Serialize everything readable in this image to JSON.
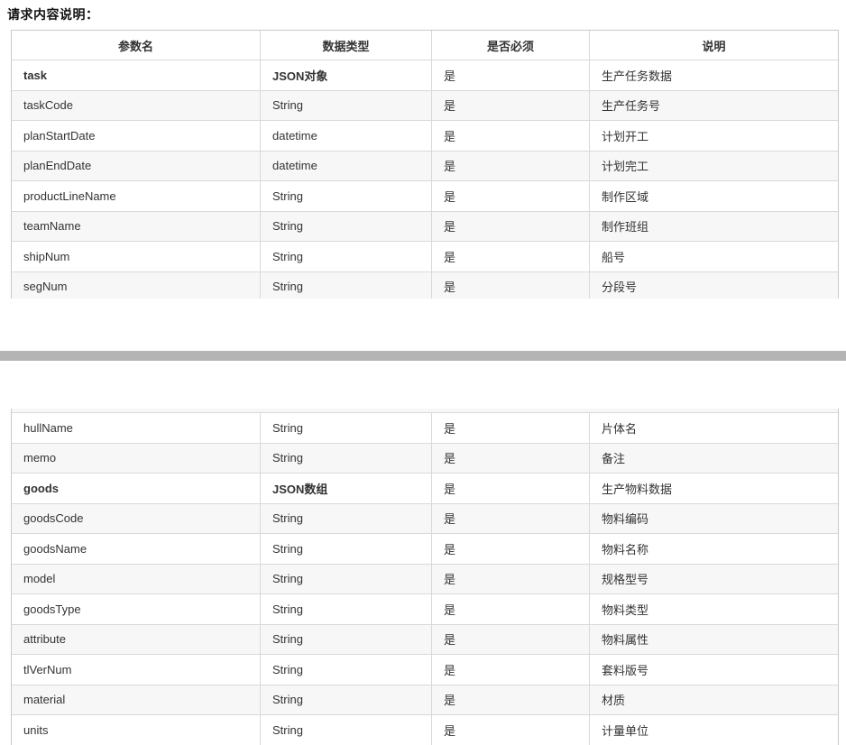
{
  "page": {
    "heading": "请求内容说明："
  },
  "colors": {
    "page_divider": "#b4b4b4",
    "row_stripe": "#f7f7f7",
    "table_border": "#c9c9c9",
    "cell_border": "#d9d9d9",
    "text": "#333333"
  },
  "table": {
    "headers": [
      "参数名",
      "数据类型",
      "是否必须",
      "说明"
    ]
  },
  "tables": {
    "page1_rows": [
      {
        "name": "task",
        "type": "JSON对象",
        "required": "是",
        "desc": "生产任务数据",
        "bold": true
      },
      {
        "name": "taskCode",
        "type": "String",
        "required": "是",
        "desc": "生产任务号"
      },
      {
        "name": "planStartDate",
        "type": "datetime",
        "required": "是",
        "desc": "计划开工"
      },
      {
        "name": "planEndDate",
        "type": "datetime",
        "required": "是",
        "desc": "计划完工"
      },
      {
        "name": "productLineName",
        "type": "String",
        "required": "是",
        "desc": "制作区域"
      },
      {
        "name": "teamName",
        "type": "String",
        "required": "是",
        "desc": "制作班组"
      },
      {
        "name": "shipNum",
        "type": "String",
        "required": "是",
        "desc": "船号"
      },
      {
        "name": "segNum",
        "type": "String",
        "required": "是",
        "desc": "分段号"
      }
    ],
    "page2_rows": [
      {
        "name": "hullName",
        "type": "String",
        "required": "是",
        "desc": "片体名"
      },
      {
        "name": "memo",
        "type": "String",
        "required": "是",
        "desc": "备注"
      },
      {
        "name": "goods",
        "type": "JSON数组",
        "required": "是",
        "desc": "生产物料数据",
        "bold": true
      },
      {
        "name": "goodsCode",
        "type": "String",
        "required": "是",
        "desc": "物料编码"
      },
      {
        "name": "goodsName",
        "type": "String",
        "required": "是",
        "desc": "物料名称"
      },
      {
        "name": "model",
        "type": "String",
        "required": "是",
        "desc": "规格型号"
      },
      {
        "name": "goodsType",
        "type": "String",
        "required": "是",
        "desc": "物料类型"
      },
      {
        "name": "attribute",
        "type": "String",
        "required": "是",
        "desc": "物料属性"
      },
      {
        "name": "tlVerNum",
        "type": "String",
        "required": "是",
        "desc": "套料版号"
      },
      {
        "name": "material",
        "type": "String",
        "required": "是",
        "desc": "材质"
      },
      {
        "name": "units",
        "type": "String",
        "required": "是",
        "desc": "计量单位"
      }
    ]
  }
}
